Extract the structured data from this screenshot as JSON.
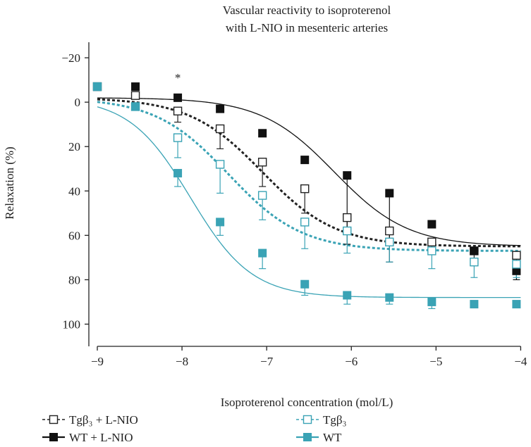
{
  "chart_data": {
    "type": "scatter",
    "title": "Vascular reactivity to isoproterenol",
    "subtitle": "with L-NIO in mesenteric arteries",
    "xlabel": "Isoproterenol concentration (mol/L)",
    "ylabel": "Relaxation (%)",
    "xlim": [
      -9.1,
      -3.97
    ],
    "ylim": [
      -27,
      110
    ],
    "y_inverted": true,
    "x_ticks": [
      -9,
      -8,
      -7,
      -6,
      -5,
      -4
    ],
    "x_tick_labels": [
      "−9",
      "−8",
      "−7",
      "−6",
      "−5",
      "−4"
    ],
    "y_ticks": [
      -20,
      0,
      20,
      40,
      60,
      80,
      100
    ],
    "y_tick_labels": [
      "−20",
      "0",
      "20",
      "40",
      "60",
      "80",
      "100"
    ],
    "annotation": {
      "text": "*",
      "x": -8.05,
      "y": -8
    },
    "x": [
      -9,
      -8.55,
      -8.05,
      -7.55,
      -7.05,
      -6.55,
      -6.05,
      -5.55,
      -5.05,
      -4.55,
      -4.05
    ],
    "series": [
      {
        "name": "Tgβ₃ + L-NIO",
        "color": "#222222",
        "marker": "open-square",
        "line_style": "dashed-bold",
        "values": [
          -7,
          -3,
          4,
          12,
          27,
          39,
          52,
          58,
          63,
          67,
          69
        ],
        "errors": [
          0,
          0,
          5,
          9,
          11,
          11,
          6,
          5,
          5,
          5,
          5
        ],
        "fit": {
          "bottom": -2,
          "top": 65,
          "logEC50": -7.05,
          "hill": 1.0
        }
      },
      {
        "name": "WT + L-NIO",
        "color": "#111111",
        "marker": "filled-square",
        "line_style": "solid-thin",
        "values": [
          -7,
          -7,
          -2,
          3,
          14,
          26,
          33,
          41,
          55,
          67,
          76
        ],
        "errors": [
          0,
          0,
          0,
          0,
          0,
          0,
          31,
          31,
          0,
          0,
          4
        ],
        "fit": {
          "bottom": -2,
          "top": 65,
          "logEC50": -6.2,
          "hill": 1.0
        }
      },
      {
        "name": "Tgβ₃",
        "color": "#3aa3b5",
        "marker": "open-square",
        "line_style": "dashed-bold",
        "values": [
          -7,
          2,
          16,
          28,
          42,
          54,
          58,
          63,
          67,
          72,
          73
        ],
        "errors": [
          0,
          0,
          9,
          13,
          11,
          12,
          10,
          9,
          8,
          7,
          6
        ],
        "fit": {
          "bottom": -2,
          "top": 67,
          "logEC50": -7.45,
          "hill": 1.0
        }
      },
      {
        "name": "WT",
        "color": "#3aa3b5",
        "marker": "filled-square",
        "line_style": "solid-thin",
        "values": [
          -7,
          2,
          32,
          54,
          68,
          82,
          87,
          88,
          90,
          91,
          91
        ],
        "errors": [
          0,
          0,
          6,
          6,
          7,
          5,
          4,
          3,
          3,
          0,
          0
        ],
        "fit": {
          "bottom": -2,
          "top": 88,
          "logEC50": -7.9,
          "hill": 1.2
        }
      }
    ],
    "legend": [
      {
        "label": "Tgβ₃ + L-NIO"
      },
      {
        "label": "Tgβ₃"
      },
      {
        "label": "WT + L-NIO"
      },
      {
        "label": "WT"
      }
    ]
  }
}
